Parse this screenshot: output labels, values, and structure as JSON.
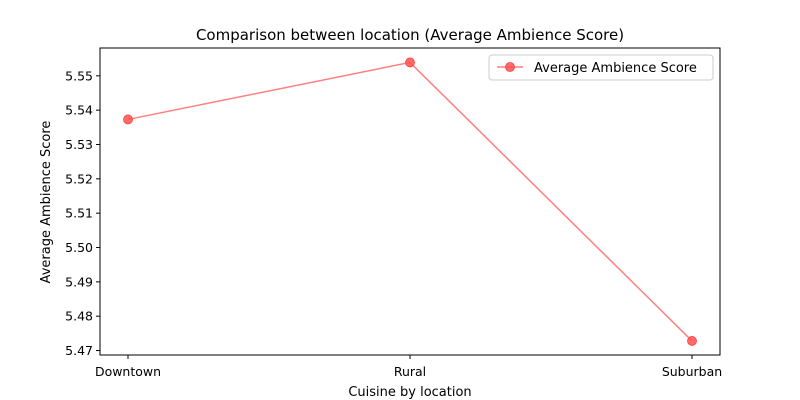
{
  "chart_data": {
    "type": "line",
    "title": "Comparison between location (Average Ambience Score)",
    "xlabel": "Cuisine by location",
    "ylabel": "Average Ambience Score",
    "categories": [
      "Downtown",
      "Rural",
      "Suburban"
    ],
    "series": [
      {
        "name": "Average Ambience Score",
        "values": [
          5.5373,
          5.5539,
          5.4728
        ],
        "color": "#ff7f7f",
        "marker": "circle"
      }
    ],
    "ylim": [
      5.4687,
      5.5581
    ],
    "yticks": [
      5.47,
      5.48,
      5.49,
      5.5,
      5.51,
      5.52,
      5.53,
      5.54,
      5.55
    ],
    "ytick_labels": [
      "5.47",
      "5.48",
      "5.49",
      "5.50",
      "5.51",
      "5.52",
      "5.53",
      "5.54",
      "5.55"
    ],
    "grid": false,
    "legend": "top-right"
  }
}
